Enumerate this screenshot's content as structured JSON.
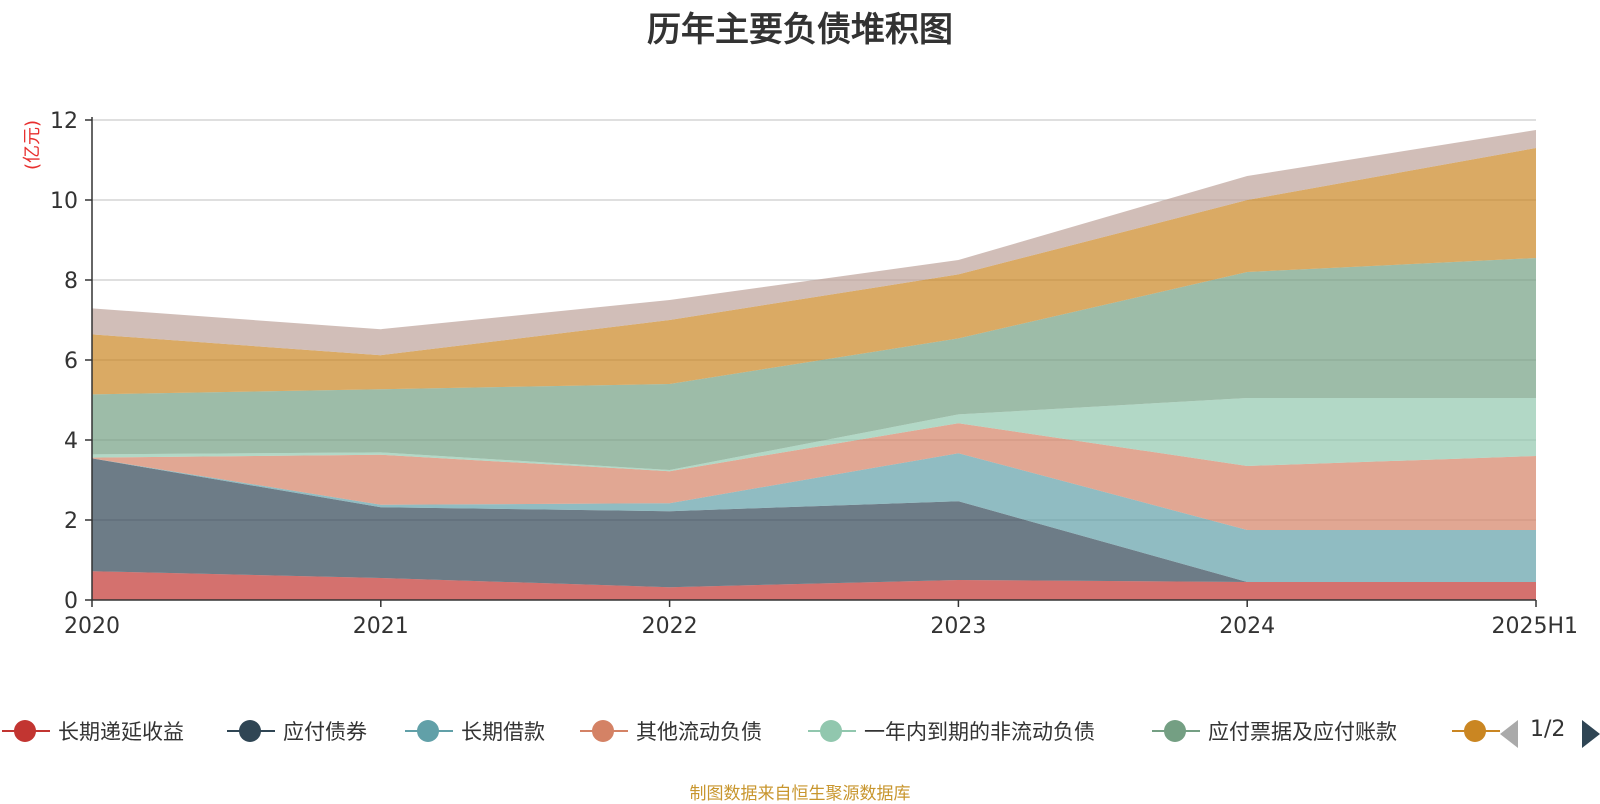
{
  "title": "历年主要负债堆积图",
  "footer": "制图数据来自恒生聚源数据库",
  "colors": {
    "title": "#333333",
    "footer": "#c8962e",
    "ylabel": "#e8302f",
    "axis": "#333333",
    "grid": "#cccccc",
    "pager_active": "#2f4554",
    "pager_inactive": "#aaaaaa"
  },
  "legend": {
    "items": [
      {
        "name": "长期递延收益",
        "color": "#c23531"
      },
      {
        "name": "应付债券",
        "color": "#2f4554"
      },
      {
        "name": "长期借款",
        "color": "#61a0a8"
      },
      {
        "name": "其他流动负债",
        "color": "#d48265"
      },
      {
        "name": "一年内到期的非流动负债",
        "color": "#91c7ae"
      },
      {
        "name": "应付票据及应付账款",
        "color": "#749f83"
      },
      {
        "name": "",
        "color": "#ca8622"
      }
    ],
    "page": "1/2"
  },
  "chart_data": {
    "type": "area",
    "stacked": true,
    "title": "历年主要负债堆积图",
    "ylabel": "(亿元)",
    "xlabel": "",
    "categories": [
      "2020",
      "2021",
      "2022",
      "2023",
      "2024",
      "2025H1"
    ],
    "ylim": [
      0,
      12
    ],
    "yticks": [
      0,
      2,
      4,
      6,
      8,
      10,
      12
    ],
    "grid": true,
    "legend_position": "bottom",
    "series": [
      {
        "name": "长期递延收益",
        "color": "#c23531",
        "values": [
          0.72,
          0.55,
          0.32,
          0.5,
          0.45,
          0.45
        ]
      },
      {
        "name": "应付债券",
        "color": "#2f4554",
        "values": [
          2.82,
          1.77,
          1.9,
          1.97,
          0,
          0
        ]
      },
      {
        "name": "长期借款",
        "color": "#61a0a8",
        "values": [
          0,
          0.06,
          0.2,
          1.2,
          1.3,
          1.3
        ]
      },
      {
        "name": "其他流动负债",
        "color": "#d48265",
        "values": [
          0.02,
          1.25,
          0.8,
          0.75,
          1.6,
          1.85
        ]
      },
      {
        "name": "一年内到期的非流动负债",
        "color": "#91c7ae",
        "values": [
          0.08,
          0.06,
          0.03,
          0.22,
          1.7,
          1.45
        ]
      },
      {
        "name": "应付票据及应付账款",
        "color": "#749f83",
        "values": [
          1.5,
          1.58,
          2.15,
          1.9,
          3.15,
          3.5
        ]
      },
      {
        "color": "#ca8622",
        "values": [
          1.5,
          0.85,
          1.6,
          1.6,
          1.8,
          2.75
        ]
      },
      {
        "color": "#bda29a",
        "values": [
          0.65,
          0.65,
          0.5,
          0.36,
          0.6,
          0.45
        ]
      }
    ]
  }
}
